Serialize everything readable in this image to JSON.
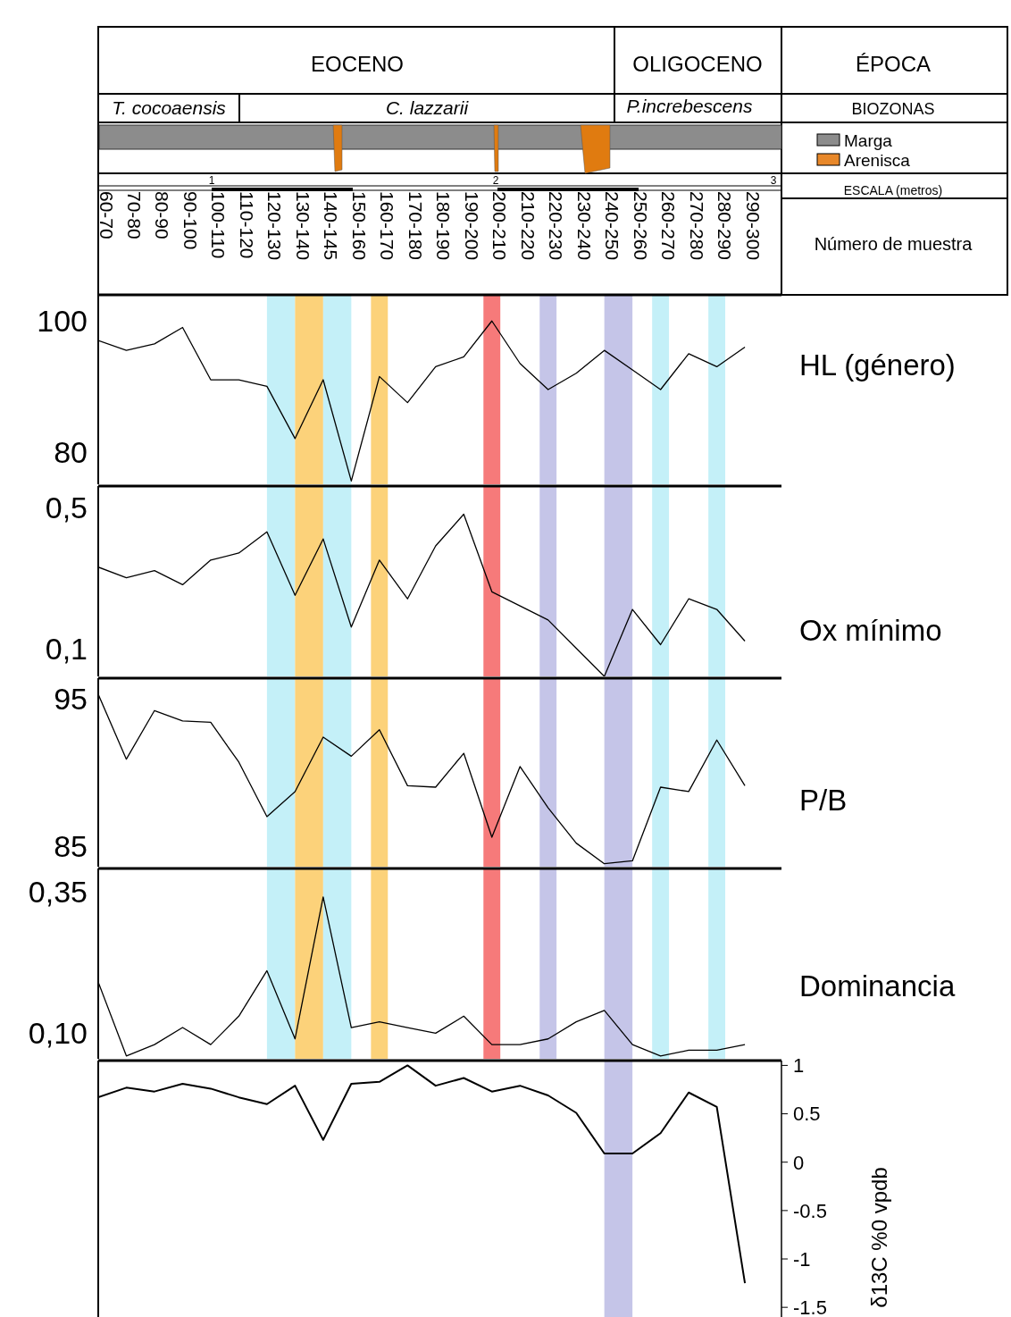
{
  "chart_data": [
    {
      "type": "other",
      "annotations": [
        "EOCENO",
        "OLIGOCENO",
        "ÉPOCA",
        "T. cocoaensis",
        "C. lazzarii",
        "P.increbescens",
        "BIOZONAS",
        "Marga",
        "Arenisca",
        "1",
        "2",
        "3",
        "ESCALA (metros)",
        "Número de muestra"
      ]
    },
    {
      "type": "line",
      "categories": [
        "60-70",
        "70-80",
        "80-90",
        "90-100",
        "100-110",
        "110-120",
        "120-130",
        "130-140",
        "140-145",
        "150-160",
        "160-170",
        "170-180",
        "180-190",
        "190-200",
        "200-210",
        "210-220",
        "220-230",
        "230-240",
        "240-250",
        "250-260",
        "260-270",
        "270-280",
        "280-290",
        "290-300"
      ],
      "series": [
        {
          "color": "#000000",
          "values": [
            97,
            95.5,
            96.5,
            99,
            91,
            91,
            90,
            82,
            91,
            75.5,
            91.5,
            87.5,
            93,
            94.5,
            100,
            93.5,
            89.5,
            92,
            95.5,
            92.5,
            89.5,
            95,
            93,
            96
          ]
        }
      ],
      "ylim": [
        75,
        104
      ],
      "yticks": [
        80,
        100
      ],
      "ylabel": "HL (género)",
      "marker": "none",
      "bands": [
        {
          "axis": "x",
          "from": "120-130",
          "to": "130-140",
          "color": "#c4f0f8"
        },
        {
          "axis": "x",
          "from": "130-140",
          "to": "140-145",
          "color": "#fcd27a"
        },
        {
          "axis": "x",
          "from": "140-145",
          "to": "150-160",
          "color": "#c4f0f8"
        },
        {
          "axis": "x",
          "from": "160-170",
          "to": "160-170",
          "color": "#fcd27a"
        },
        {
          "axis": "x",
          "from": "200-210",
          "to": "200-210",
          "color": "#f67a7a"
        },
        {
          "axis": "x",
          "from": "220-230",
          "to": "220-230",
          "color": "#c5c5e8"
        },
        {
          "axis": "x",
          "from": "240-250",
          "to": "250-260",
          "color": "#c5c5e8"
        },
        {
          "axis": "x",
          "from": "260-270",
          "to": "260-270",
          "color": "#c4f0f8"
        },
        {
          "axis": "x",
          "from": "280-290",
          "to": "280-290",
          "color": "#c4f0f8"
        }
      ]
    },
    {
      "type": "line",
      "categories": [
        "60-70",
        "70-80",
        "80-90",
        "90-100",
        "100-110",
        "110-120",
        "120-130",
        "130-140",
        "140-145",
        "150-160",
        "160-170",
        "170-180",
        "180-190",
        "190-200",
        "200-210",
        "210-220",
        "220-230",
        "230-240",
        "240-250",
        "250-260",
        "260-270",
        "270-280",
        "280-290",
        "290-300"
      ],
      "tick_labels": "y",
      "series": [
        {
          "color": "#000000",
          "values": [
            0.33,
            0.3,
            0.32,
            0.28,
            0.35,
            0.37,
            0.43,
            0.25,
            0.41,
            0.16,
            0.35,
            0.24,
            0.39,
            0.48,
            0.26,
            0.22,
            0.18,
            0.1,
            0.02,
            0.21,
            0.11,
            0.24,
            0.21,
            0.12
          ]
        }
      ],
      "ylim": [
        0.02,
        0.56
      ],
      "yticks": [
        {
          "value": 0.5,
          "label": "0,5"
        },
        {
          "value": 0.1,
          "label": "0,1"
        }
      ],
      "ylabel": "Ox mínimo",
      "marker": "none",
      "bands": [
        {
          "axis": "x",
          "from": "120-130",
          "to": "130-140",
          "color": "#c4f0f8"
        },
        {
          "axis": "x",
          "from": "130-140",
          "to": "140-145",
          "color": "#fcd27a"
        },
        {
          "axis": "x",
          "from": "140-145",
          "to": "150-160",
          "color": "#c4f0f8"
        },
        {
          "axis": "x",
          "from": "160-170",
          "to": "160-170",
          "color": "#fcd27a"
        },
        {
          "axis": "x",
          "from": "200-210",
          "to": "200-210",
          "color": "#f67a7a"
        },
        {
          "axis": "x",
          "from": "220-230",
          "to": "220-230",
          "color": "#c5c5e8"
        },
        {
          "axis": "x",
          "from": "240-250",
          "to": "250-260",
          "color": "#c5c5e8"
        },
        {
          "axis": "x",
          "from": "260-270",
          "to": "260-270",
          "color": "#c4f0f8"
        },
        {
          "axis": "x",
          "from": "280-290",
          "to": "280-290",
          "color": "#c4f0f8"
        }
      ]
    },
    {
      "type": "line",
      "categories": [
        "60-70",
        "70-80",
        "80-90",
        "90-100",
        "100-110",
        "110-120",
        "120-130",
        "130-140",
        "140-145",
        "150-160",
        "160-170",
        "170-180",
        "180-190",
        "190-200",
        "200-210",
        "210-220",
        "220-230",
        "230-240",
        "240-250",
        "250-260",
        "260-270",
        "270-280",
        "280-290",
        "290-300"
      ],
      "tick_labels": "y",
      "series": [
        {
          "color": "#000000",
          "values": [
            95.3,
            90.9,
            94.2,
            93.5,
            93.4,
            90.7,
            87,
            88.7,
            92.4,
            91.1,
            92.9,
            89.1,
            89,
            91.3,
            85.6,
            90.4,
            87.6,
            85.2,
            83.8,
            84,
            89,
            88.7,
            92.2,
            89.1
          ]
        }
      ],
      "ylim": [
        83.6,
        96.4
      ],
      "yticks": [
        85,
        95
      ],
      "ylabel": "P/B",
      "marker": "none",
      "bands": [
        {
          "axis": "x",
          "from": "120-130",
          "to": "130-140",
          "color": "#c4f0f8"
        },
        {
          "axis": "x",
          "from": "130-140",
          "to": "140-145",
          "color": "#fcd27a"
        },
        {
          "axis": "x",
          "from": "140-145",
          "to": "150-160",
          "color": "#c4f0f8"
        },
        {
          "axis": "x",
          "from": "160-170",
          "to": "160-170",
          "color": "#fcd27a"
        },
        {
          "axis": "x",
          "from": "200-210",
          "to": "200-210",
          "color": "#f67a7a"
        },
        {
          "axis": "x",
          "from": "220-230",
          "to": "220-230",
          "color": "#c5c5e8"
        },
        {
          "axis": "x",
          "from": "240-250",
          "to": "250-260",
          "color": "#c5c5e8"
        },
        {
          "axis": "x",
          "from": "260-270",
          "to": "260-270",
          "color": "#c4f0f8"
        },
        {
          "axis": "x",
          "from": "280-290",
          "to": "280-290",
          "color": "#c4f0f8"
        }
      ]
    },
    {
      "type": "line",
      "categories": [
        "60-70",
        "70-80",
        "80-90",
        "90-100",
        "100-110",
        "110-120",
        "120-130",
        "130-140",
        "140-145",
        "150-160",
        "160-170",
        "170-180",
        "180-190",
        "190-200",
        "200-210",
        "210-220",
        "220-230",
        "230-240",
        "240-250",
        "250-260",
        "260-270",
        "270-280",
        "280-290",
        "290-300"
      ],
      "tick_labels": "y",
      "series": [
        {
          "color": "#000000",
          "values": [
            0.19,
            0.06,
            0.08,
            0.11,
            0.08,
            0.13,
            0.21,
            0.09,
            0.34,
            0.11,
            0.12,
            0.11,
            0.1,
            0.13,
            0.08,
            0.08,
            0.09,
            0.12,
            0.14,
            0.08,
            0.06,
            0.07,
            0.07,
            0.08
          ]
        }
      ],
      "ylim": [
        0.055,
        0.39
      ],
      "yticks": [
        {
          "value": 0.35,
          "label": "0,35"
        },
        {
          "value": 0.1,
          "label": "0,10"
        }
      ],
      "ylabel": "Dominancia",
      "marker": "none",
      "bands": [
        {
          "axis": "x",
          "from": "120-130",
          "to": "130-140",
          "color": "#c4f0f8"
        },
        {
          "axis": "x",
          "from": "130-140",
          "to": "140-145",
          "color": "#fcd27a"
        },
        {
          "axis": "x",
          "from": "140-145",
          "to": "150-160",
          "color": "#c4f0f8"
        },
        {
          "axis": "x",
          "from": "160-170",
          "to": "160-170",
          "color": "#fcd27a"
        },
        {
          "axis": "x",
          "from": "200-210",
          "to": "200-210",
          "color": "#f67a7a"
        },
        {
          "axis": "x",
          "from": "220-230",
          "to": "220-230",
          "color": "#c5c5e8"
        },
        {
          "axis": "x",
          "from": "240-250",
          "to": "250-260",
          "color": "#c5c5e8"
        },
        {
          "axis": "x",
          "from": "260-270",
          "to": "260-270",
          "color": "#c4f0f8"
        },
        {
          "axis": "x",
          "from": "280-290",
          "to": "280-290",
          "color": "#c4f0f8"
        }
      ]
    },
    {
      "type": "line",
      "categories": [
        "60-70",
        "70-80",
        "80-90",
        "90-100",
        "100-110",
        "110-120",
        "120-130",
        "130-140",
        "140-145",
        "150-160",
        "160-170",
        "170-180",
        "180-190",
        "190-200",
        "200-210",
        "210-220",
        "220-230",
        "230-240",
        "240-250",
        "250-260",
        "260-270",
        "270-280",
        "280-290",
        "290-300"
      ],
      "tick_labels": "y",
      "series": [
        {
          "color": "#000000",
          "axis": "y2",
          "values": [
            0.67,
            0.77,
            0.73,
            0.81,
            0.76,
            0.67,
            0.6,
            0.79,
            0.23,
            0.81,
            0.83,
            1,
            0.79,
            0.87,
            0.73,
            0.79,
            0.69,
            0.51,
            0.09,
            0.09,
            0.3,
            0.72,
            0.57,
            -1.25
          ]
        }
      ],
      "y2lim": [
        -1.6,
        1.05
      ],
      "y2ticks": [
        1,
        0.5,
        0,
        -0.5,
        -1,
        -1.5
      ],
      "y2label": "δ13C %0 vpdb",
      "marker": "none",
      "bands": [
        {
          "axis": "x",
          "from": "240-250",
          "to": "250-260",
          "color": "#c5c5e8"
        }
      ]
    }
  ]
}
